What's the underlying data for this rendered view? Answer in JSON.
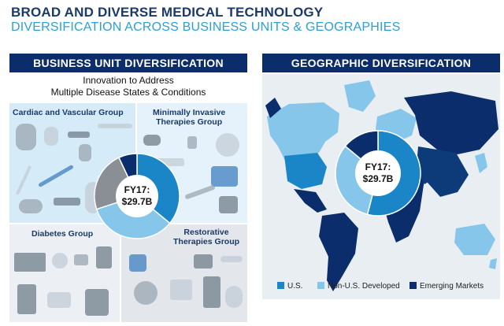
{
  "header": {
    "title": "BROAD AND DIVERSE MEDICAL TECHNOLOGY",
    "subtitle": "DIVERSIFICATION ACROSS BUSINESS UNITS & GEOGRAPHIES"
  },
  "left_panel": {
    "heading": "BUSINESS UNIT DIVERSIFICATION",
    "intro_line1": "Innovation to Address",
    "intro_line2": "Multiple Disease States & Conditions",
    "groups": {
      "cardiac": "Cardiac and Vascular Group",
      "mitg_line1": "Minimally Invasive",
      "mitg_line2": "Therapies Group",
      "diabetes": "Diabetes Group",
      "rtg_line1": "Restorative",
      "rtg_line2": "Therapies Group"
    }
  },
  "right_panel": {
    "heading": "GEOGRAPHIC DIVERSIFICATION"
  },
  "colors": {
    "navy": "#0b2d6b",
    "blue": "#1a86c8",
    "light_blue": "#86c6ea",
    "gray": "#8a8f95",
    "dark_navy": "#0d3a78"
  },
  "chart_data": [
    {
      "type": "pie",
      "center_label_line1": "FY17:",
      "center_label_line2": "$29.7B",
      "categories": [
        "Cardiac and Vascular Group",
        "Minimally Invasive Therapies Group",
        "Restorative Therapies Group",
        "Diabetes Group"
      ],
      "values": [
        36,
        34,
        23,
        7
      ],
      "colors": [
        "#1a86c8",
        "#86c6ea",
        "#8a8f95",
        "#0b2d6b"
      ]
    },
    {
      "type": "pie",
      "center_label_line1": "FY17:",
      "center_label_line2": "$29.7B",
      "categories": [
        "U.S.",
        "Non-U.S. Developed",
        "Emerging Markets"
      ],
      "values": [
        54,
        32,
        14
      ],
      "colors": [
        "#1a86c8",
        "#86c6ea",
        "#0b2d6b"
      ],
      "legend_position": "bottom"
    }
  ]
}
